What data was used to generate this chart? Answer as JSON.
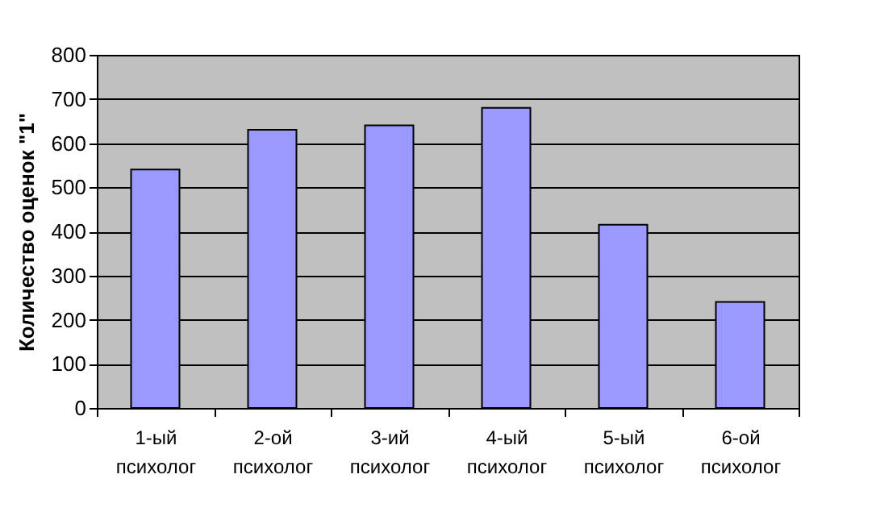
{
  "chart_data": {
    "type": "bar",
    "ylabel": "Количество оценок \"1\"",
    "categories": [
      "1-ый психолог",
      "2-ой психолог",
      "3-ий психолог",
      "4-ый психолог",
      "5-ый психолог",
      "6-ой психолог"
    ],
    "values": [
      540,
      630,
      640,
      680,
      415,
      240
    ],
    "color": "#9999ff",
    "ylim": [
      0,
      800
    ],
    "yticks": [
      0,
      100,
      200,
      300,
      400,
      500,
      600,
      700,
      800
    ],
    "grid": "y"
  }
}
